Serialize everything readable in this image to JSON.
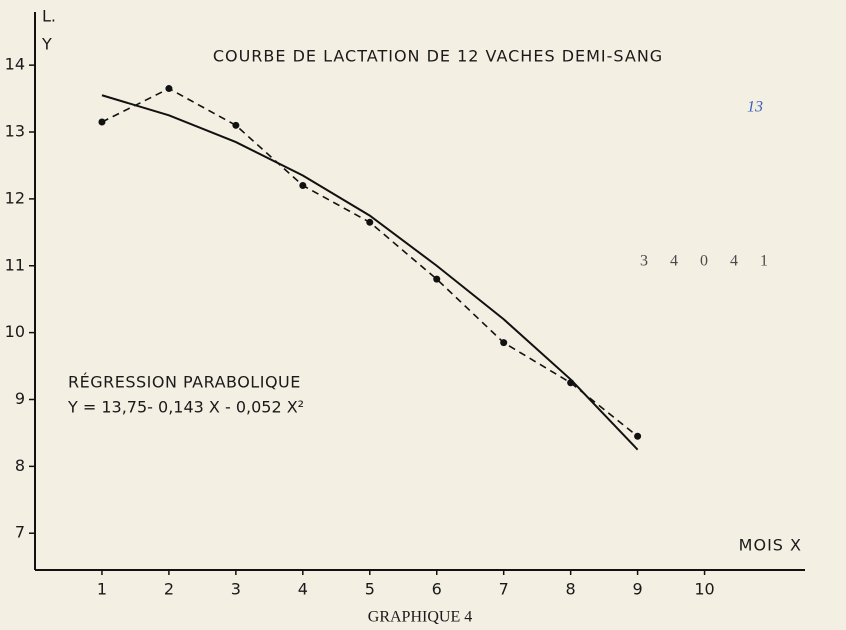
{
  "chart_data": {
    "type": "line",
    "title": "COURBE DE LACTATION DE 12 VACHES DEMI-SANG",
    "y_label_lines": [
      "L.",
      "Y"
    ],
    "x_label": "MOIS X",
    "annotations": [
      "RÉGRESSION PARABOLIQUE",
      "Y = 13,75- 0,143 X - 0,052 X²"
    ],
    "caption": "GRAPHIQUE 4",
    "stamps": [
      "13",
      "34041"
    ],
    "x": [
      1,
      2,
      3,
      4,
      5,
      6,
      7,
      8,
      9
    ],
    "series": [
      {
        "color": "#111111",
        "style": "dashed",
        "markers": true,
        "values": [
          13.15,
          13.65,
          13.1,
          12.2,
          11.65,
          10.8,
          9.85,
          9.25,
          8.45
        ]
      },
      {
        "color": "#111111",
        "style": "solid",
        "markers": false,
        "values": [
          13.55,
          13.25,
          12.85,
          12.35,
          11.75,
          11.0,
          10.2,
          9.3,
          8.25
        ]
      }
    ],
    "xlim": [
      0,
      11.5
    ],
    "xticks": [
      1,
      2,
      3,
      4,
      5,
      6,
      7,
      8,
      9,
      10
    ],
    "ylim": [
      6.45,
      14.75
    ],
    "yticks": [
      7,
      8,
      9,
      10,
      11,
      12,
      13,
      14
    ],
    "grid": false
  }
}
